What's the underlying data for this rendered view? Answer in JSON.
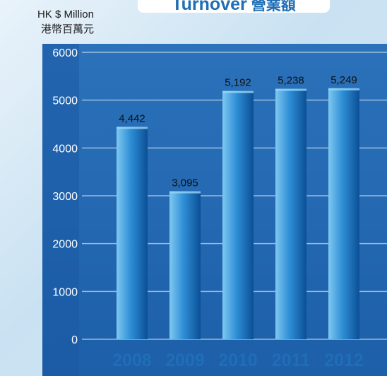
{
  "title": {
    "en": "Turnover",
    "zh": "營業額"
  },
  "unit": {
    "line1": "HK $ Million",
    "line2": "港幣百萬元"
  },
  "colors": {
    "panel": "#2268b0",
    "axis_strip": "#1b5aa4",
    "bar_light": "#7ec8f1",
    "bar_dark": "#0b4f96",
    "year_label": "#1f6eb6",
    "tick_label": "#ffffff",
    "value_label": "#111111"
  },
  "chart_data": {
    "type": "bar",
    "title": "Turnover 營業額",
    "ylabel": "HK $ Million 港幣百萬元",
    "xlabel": "",
    "categories": [
      "2008",
      "2009",
      "2010",
      "2011",
      "2012"
    ],
    "values": [
      4442,
      3095,
      5192,
      5238,
      5249
    ],
    "value_labels": [
      "4,442",
      "3,095",
      "5,192",
      "5,238",
      "5,249"
    ],
    "yticks": [
      0,
      1000,
      2000,
      3000,
      4000,
      5000,
      6000
    ],
    "ytick_labels": [
      "0",
      "1000",
      "2000",
      "3000",
      "4000",
      "5000",
      "6000"
    ],
    "ylim": [
      0,
      6000
    ],
    "grid": true,
    "legend": "none"
  }
}
